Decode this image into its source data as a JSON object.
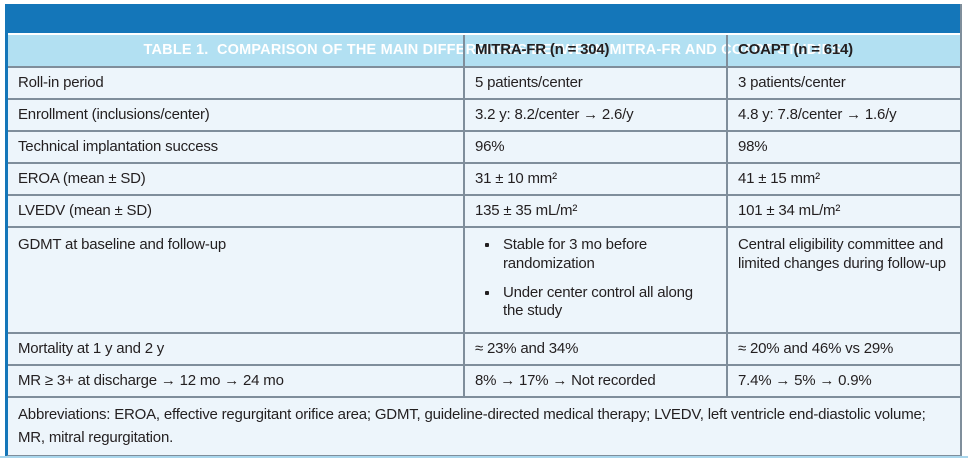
{
  "colors": {
    "title_bg": "#1476b9",
    "title_text": "#ffffff",
    "column_header_bg": "#b2e0f2",
    "body_row_bg": "#edf5fb",
    "border_gray": "#7f8e9b",
    "left_accent_border": "#1476b9",
    "body_text": "#231f20",
    "bottom_rule": "#a9d6ec"
  },
  "table": {
    "title": "TABLE 1.  COMPARISON OF THE MAIN DIFFERENCES BETWEEN MITRA-FR AND COAPT STUDIES",
    "columns": [
      "",
      "MITRA-FR (n = 304)",
      "COAPT (n = 614)"
    ],
    "rows": [
      {
        "label": "Roll-in period",
        "mitra_fr": "5 patients/center",
        "coapt": "3 patients/center"
      },
      {
        "label": "Enrollment (inclusions/center)",
        "mitra_fr": "3.2 y: 8.2/center → 2.6/y",
        "coapt": "4.8 y: 7.8/center → 1.6/y"
      },
      {
        "label": "Technical implantation success",
        "mitra_fr": "96%",
        "coapt": "98%"
      },
      {
        "label": "EROA (mean ± SD)",
        "mitra_fr": "31 ± 10 mm²",
        "coapt": "41 ± 15 mm²"
      },
      {
        "label": "LVEDV (mean ± SD)",
        "mitra_fr": "135 ± 35 mL/m²",
        "coapt": "101 ± 34 mL/m²"
      },
      {
        "label": "GDMT at baseline and follow-up",
        "mitra_fr_bullets": [
          "Stable for 3 mo before randomization",
          "Under center control all along the study"
        ],
        "coapt": "Central eligibility committee and limited changes during follow-up"
      },
      {
        "label": "Mortality at 1 y and 2 y",
        "mitra_fr": "≈ 23% and 34%",
        "coapt": "≈ 20% and 46% vs 29%"
      },
      {
        "label": "MR ≥ 3+ at discharge → 12 mo → 24 mo",
        "mitra_fr": "8% → 17% → Not recorded",
        "coapt": "7.4% → 5% → 0.9%"
      }
    ],
    "footnote": "Abbreviations: EROA, effective regurgitant orifice area; GDMT, guideline-directed medical therapy; LVEDV, left ventricle end-diastolic volume; MR, mitral regurgitation."
  }
}
